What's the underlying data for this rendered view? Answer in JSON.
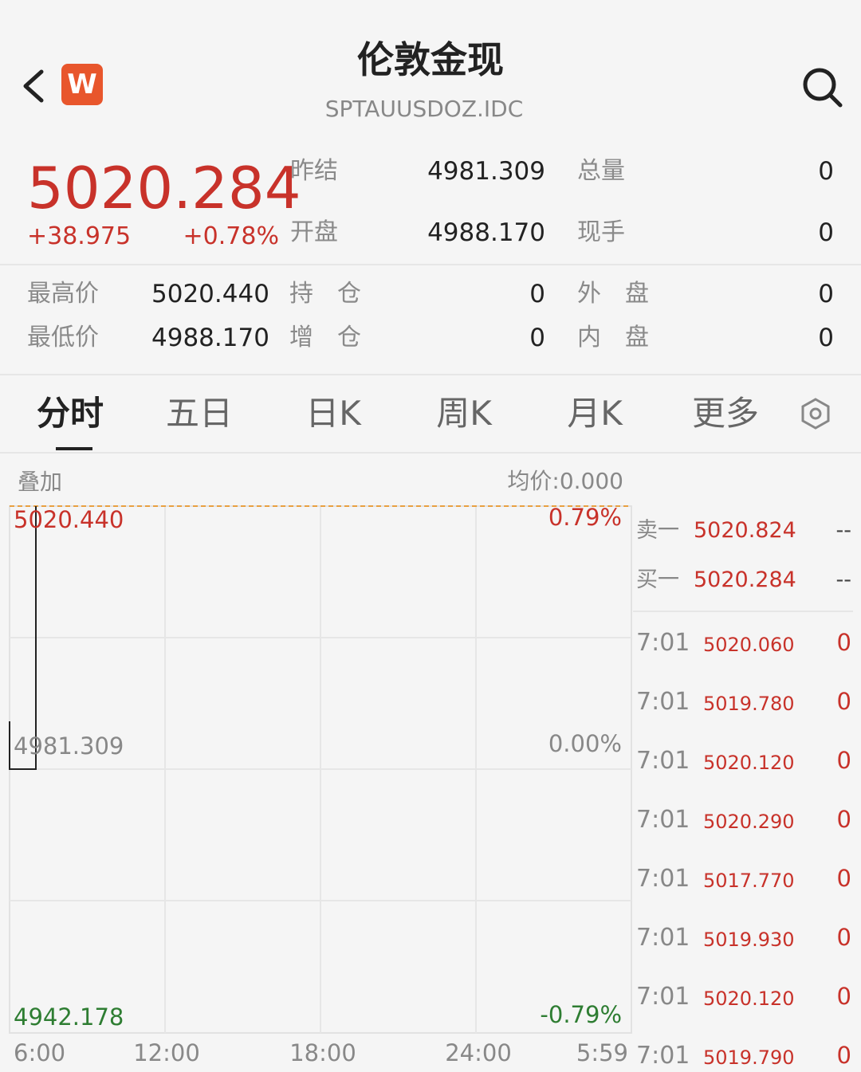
{
  "header": {
    "badge": "W",
    "title": "伦敦金现",
    "code": "SPTAUUSDOZ.IDC"
  },
  "quote": {
    "price": "5020.284",
    "change": "+38.975",
    "change_pct": "+0.78%"
  },
  "stats": {
    "top": [
      {
        "label": "昨结",
        "value": "4981.309",
        "label2": "总量",
        "value2": "0"
      },
      {
        "label": "开盘",
        "value": "4988.170",
        "label2": "现手",
        "value2": "0"
      }
    ],
    "bottom": [
      {
        "label": "最高价",
        "value": "5020.440",
        "label2": "持　仓",
        "value2": "0",
        "label3": "外　盘",
        "value3": "0"
      },
      {
        "label": "最低价",
        "value": "4988.170",
        "label2": "增　仓",
        "value2": "0",
        "label3": "内　盘",
        "value3": "0"
      }
    ]
  },
  "tabs": [
    "分时",
    "五日",
    "日K",
    "周K",
    "月K",
    "更多"
  ],
  "chart": {
    "overlay": "叠加",
    "avg_price": "均价:0.000",
    "price_labels": [
      "5020.440",
      "4981.309",
      "4942.178"
    ],
    "pct_labels": [
      "0.79%",
      "0.00%",
      "-0.79%"
    ],
    "time_labels": [
      "6:00",
      "12:00",
      "18:00",
      "24:00",
      "5:59"
    ]
  },
  "orderbook": [
    {
      "label": "卖一",
      "price": "5020.824",
      "volume": "--"
    },
    {
      "label": "买一",
      "price": "5020.284",
      "volume": "--"
    }
  ],
  "trades": [
    {
      "time": "7:01",
      "price": "5020.060",
      "volume": "0"
    },
    {
      "time": "7:01",
      "price": "5019.780",
      "volume": "0"
    },
    {
      "time": "7:01",
      "price": "5020.120",
      "volume": "0"
    },
    {
      "time": "7:01",
      "price": "5020.290",
      "volume": "0"
    },
    {
      "time": "7:01",
      "price": "5017.770",
      "volume": "0"
    },
    {
      "time": "7:01",
      "price": "5019.930",
      "volume": "0"
    },
    {
      "time": "7:01",
      "price": "5020.120",
      "volume": "0"
    },
    {
      "time": "7:01",
      "price": "5019.790",
      "volume": "0"
    }
  ]
}
